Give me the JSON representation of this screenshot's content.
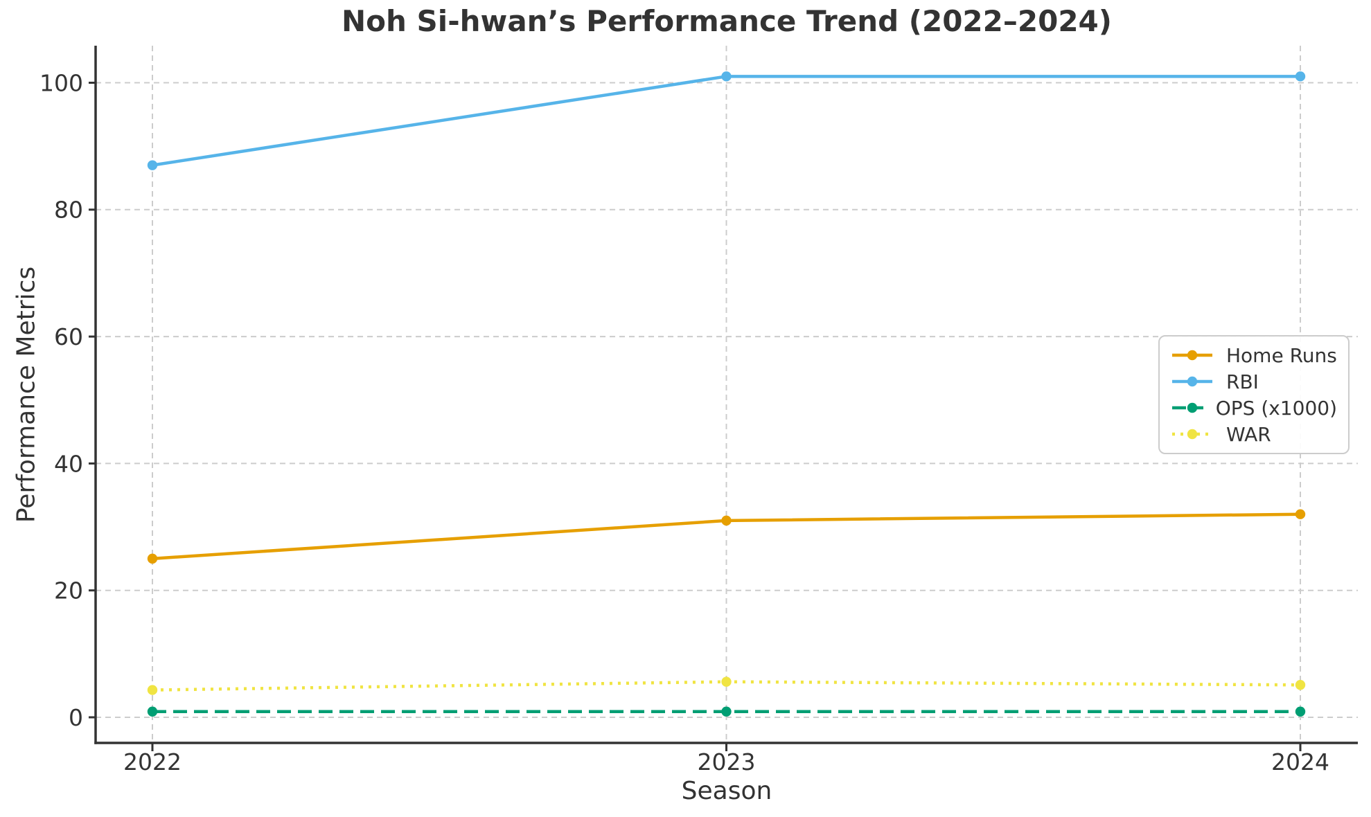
{
  "title": "Noh Si-hwan’s Performance Trend (2022–2024)",
  "chart_data": {
    "type": "line",
    "x": [
      "2022",
      "2023",
      "2024"
    ],
    "series": [
      {
        "name": "Home Runs",
        "values": [
          25,
          31,
          32
        ],
        "color": "#E69F00",
        "line_style": "solid"
      },
      {
        "name": "RBI",
        "values": [
          87,
          101,
          101
        ],
        "color": "#56B4E9",
        "line_style": "solid"
      },
      {
        "name": "OPS (x1000)",
        "values": [
          0.9,
          0.9,
          0.9
        ],
        "color": "#009E73",
        "line_style": "dashed"
      },
      {
        "name": "WAR",
        "values": [
          4.3,
          5.6,
          5.1
        ],
        "color": "#F0E442",
        "line_style": "dotted"
      }
    ],
    "xlabel": "Season",
    "ylabel": "Performance Metrics",
    "yticks": [
      0,
      20,
      40,
      60,
      80,
      100
    ],
    "ylim": [
      -4,
      106
    ],
    "grid": true,
    "legend_position": "center-right",
    "marker": "circle",
    "text_color": "#333333",
    "grid_color": "#cccccc",
    "axis_color": "#333333",
    "background": "#ffffff"
  }
}
